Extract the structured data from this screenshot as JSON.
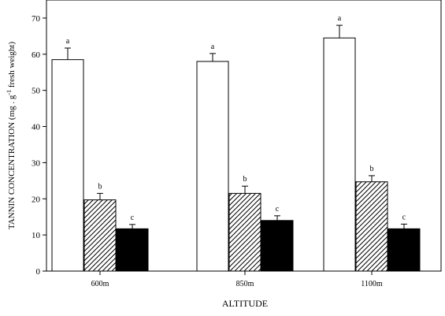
{
  "chart_data": {
    "type": "bar",
    "xlabel": "ALTITUDE",
    "ylabel": "TANNIN CONCENTRATION (mg . g",
    "ylabel_sup": "-1",
    "ylabel_suffix": " fresh weight)",
    "ylim": [
      0,
      75
    ],
    "yticks": [
      0,
      10,
      20,
      30,
      40,
      50,
      60,
      70
    ],
    "ytick_labels": [
      "0",
      "10",
      "20",
      "30",
      "40",
      "50",
      "60",
      "70"
    ],
    "categories": [
      "600m",
      "850m",
      "1100m"
    ],
    "grid": false,
    "legend": "none",
    "series": [
      {
        "fill": "white",
        "values": [
          58.5,
          58.0,
          64.5
        ],
        "errors": [
          3.2,
          2.2,
          3.5
        ],
        "letters": [
          "a",
          "a",
          "a"
        ]
      },
      {
        "fill": "hatched",
        "values": [
          19.7,
          21.5,
          24.7
        ],
        "errors": [
          1.8,
          2.0,
          1.7
        ],
        "letters": [
          "b",
          "b",
          "b"
        ]
      },
      {
        "fill": "black",
        "values": [
          11.7,
          14.0,
          11.7
        ],
        "errors": [
          1.2,
          1.3,
          1.3
        ],
        "letters": [
          "c",
          "c",
          "c"
        ]
      }
    ]
  }
}
